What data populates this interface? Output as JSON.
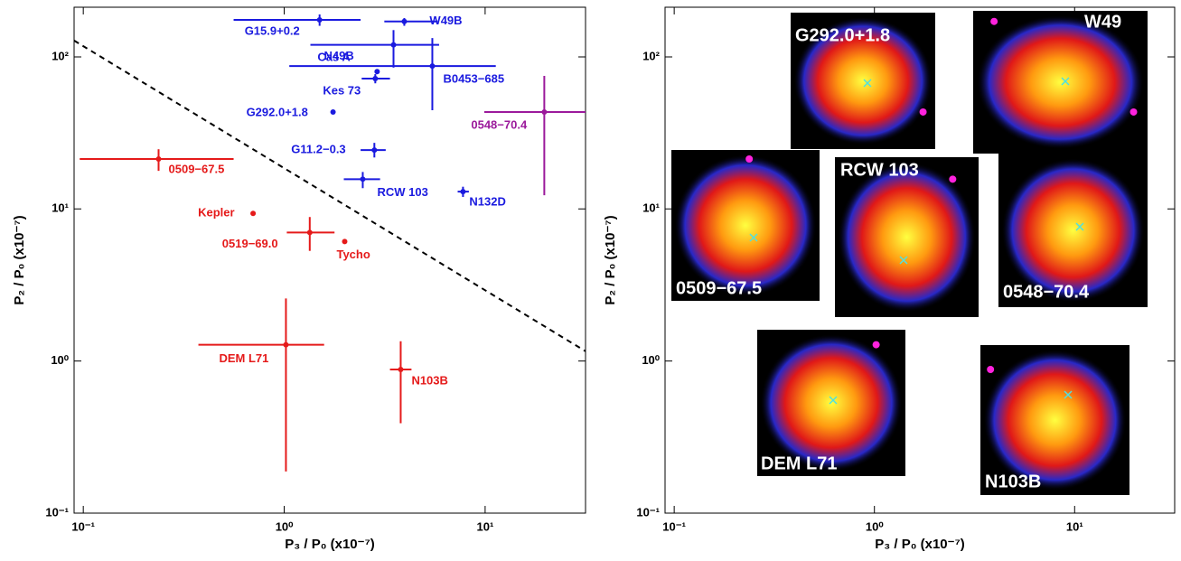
{
  "chart_data": [
    {
      "type": "scatter",
      "log_x": true,
      "log_y": true,
      "x_label": "P₃ / P₀ (x10⁻⁷)",
      "y_label": "P₂ / P₀ (x10⁻⁷)",
      "xlim": [
        0.09,
        31.6
      ],
      "ylim": [
        0.1,
        212
      ],
      "xticks": [
        {
          "value": 0.1,
          "label": "10⁻¹"
        },
        {
          "value": 1,
          "label": "10⁰"
        },
        {
          "value": 10,
          "label": "10¹"
        }
      ],
      "yticks": [
        {
          "value": 0.1,
          "label": "10⁻¹"
        },
        {
          "value": 1,
          "label": "10⁰"
        },
        {
          "value": 10,
          "label": "10¹"
        },
        {
          "value": 100,
          "label": "10²"
        }
      ],
      "trend": {
        "x": [
          0.09,
          31.6
        ],
        "y": [
          128,
          1.16
        ],
        "style": "dashed",
        "color": "#000000"
      },
      "points": [
        {
          "label": "G15.9+0.2",
          "color": "#1a1adf",
          "x": 1.5,
          "y": 175,
          "x_err": [
            0.56,
            2.4
          ],
          "y_err": [
            190,
            160
          ]
        },
        {
          "label": "W49B",
          "color": "#1a1adf",
          "x": 3.96,
          "y": 171,
          "x_err": [
            3.15,
            5.8
          ],
          "y_err": [
            180,
            160
          ]
        },
        {
          "label": "N49B",
          "color": "#1a1adf",
          "x": 3.5,
          "y": 120,
          "x_err": [
            1.35,
            5.9
          ],
          "y_err": [
            150,
            85
          ]
        },
        {
          "label": "Cas A",
          "color": "#1a1adf",
          "x": 2.9,
          "y": 80
        },
        {
          "label": "B0453−685",
          "color": "#1a1adf",
          "x": 5.46,
          "y": 87,
          "x_err": [
            1.06,
            11.3
          ],
          "y_err": [
            133,
            44.6
          ]
        },
        {
          "label": "Kes 73",
          "color": "#1a1adf",
          "x": 2.84,
          "y": 72,
          "x_err": [
            2.43,
            3.36
          ],
          "y_err": [
            77,
            67
          ]
        },
        {
          "label": "G292.0+1.8",
          "color": "#1a1adf",
          "x": 1.75,
          "y": 43.4
        },
        {
          "label": "G11.2−0.3",
          "color": "#1a1adf",
          "x": 2.81,
          "y": 24.4,
          "x_err": [
            2.4,
            3.2
          ],
          "y_err": [
            27.2,
            21.8
          ]
        },
        {
          "label": "RCW 103",
          "color": "#1a1adf",
          "x": 2.46,
          "y": 15.7,
          "x_err": [
            1.98,
            3.0
          ],
          "y_err": [
            17.5,
            13.7
          ]
        },
        {
          "label": "N132D",
          "color": "#1a1adf",
          "x": 7.76,
          "y": 13,
          "x_err": [
            7.3,
            8.3
          ],
          "y_err": [
            14,
            12
          ]
        },
        {
          "label": "0548−70.4",
          "color": "#9b1a9b",
          "x": 19.7,
          "y": 43.4,
          "x_err": [
            9.9,
            31.6
          ],
          "y_err": [
            75,
            12.3
          ]
        },
        {
          "label": "0509−67.5",
          "color": "#e51a1a",
          "x": 0.237,
          "y": 21.3,
          "x_err": [
            0.096,
            0.56
          ],
          "y_err": [
            24.7,
            17.8
          ]
        },
        {
          "label": "Kepler",
          "color": "#e51a1a",
          "x": 0.7,
          "y": 9.34
        },
        {
          "label": "0519−69.0",
          "color": "#e51a1a",
          "x": 1.34,
          "y": 7.0,
          "x_err": [
            1.03,
            1.78
          ],
          "y_err": [
            8.85,
            5.3
          ]
        },
        {
          "label": "Tycho",
          "color": "#e51a1a",
          "x": 2.0,
          "y": 6.1
        },
        {
          "label": "DEM L71",
          "color": "#e51a1a",
          "x": 1.02,
          "y": 1.28,
          "x_err": [
            0.374,
            1.58
          ],
          "y_err": [
            2.58,
            0.188
          ]
        },
        {
          "label": "N103B",
          "color": "#e51a1a",
          "x": 3.8,
          "y": 0.88,
          "x_err": [
            3.36,
            4.3
          ],
          "y_err": [
            1.35,
            0.39
          ]
        }
      ]
    },
    {
      "type": "scatter",
      "log_x": true,
      "log_y": true,
      "x_label": "P₃ / P₀ (x10⁻⁷)",
      "y_label": "P₂ / P₀ (x10⁻⁷)",
      "xlim": [
        0.09,
        31.6
      ],
      "ylim": [
        0.1,
        212
      ],
      "xticks": [
        {
          "value": 0.1,
          "label": "10⁻¹"
        },
        {
          "value": 1,
          "label": "10⁰"
        },
        {
          "value": 10,
          "label": "10¹"
        }
      ],
      "yticks": [
        {
          "value": 0.1,
          "label": "10⁻¹"
        },
        {
          "value": 1,
          "label": "10⁰"
        },
        {
          "value": 10,
          "label": "10¹"
        },
        {
          "value": 100,
          "label": "10²"
        }
      ],
      "marker_color": "#ff22dd",
      "points": [
        {
          "label": "G292.0+1.8",
          "x": 1.75,
          "y": 43.4
        },
        {
          "label": "W49",
          "x": 3.96,
          "y": 171
        },
        {
          "label": "0509−67.5",
          "x": 0.237,
          "y": 21.3
        },
        {
          "label": "RCW 103",
          "x": 2.46,
          "y": 15.7
        },
        {
          "label": "0548−70.4",
          "x": 19.7,
          "y": 43.4
        },
        {
          "label": "DEM L71",
          "x": 1.02,
          "y": 1.28
        },
        {
          "label": "N103B",
          "x": 3.8,
          "y": 0.88
        }
      ]
    }
  ]
}
